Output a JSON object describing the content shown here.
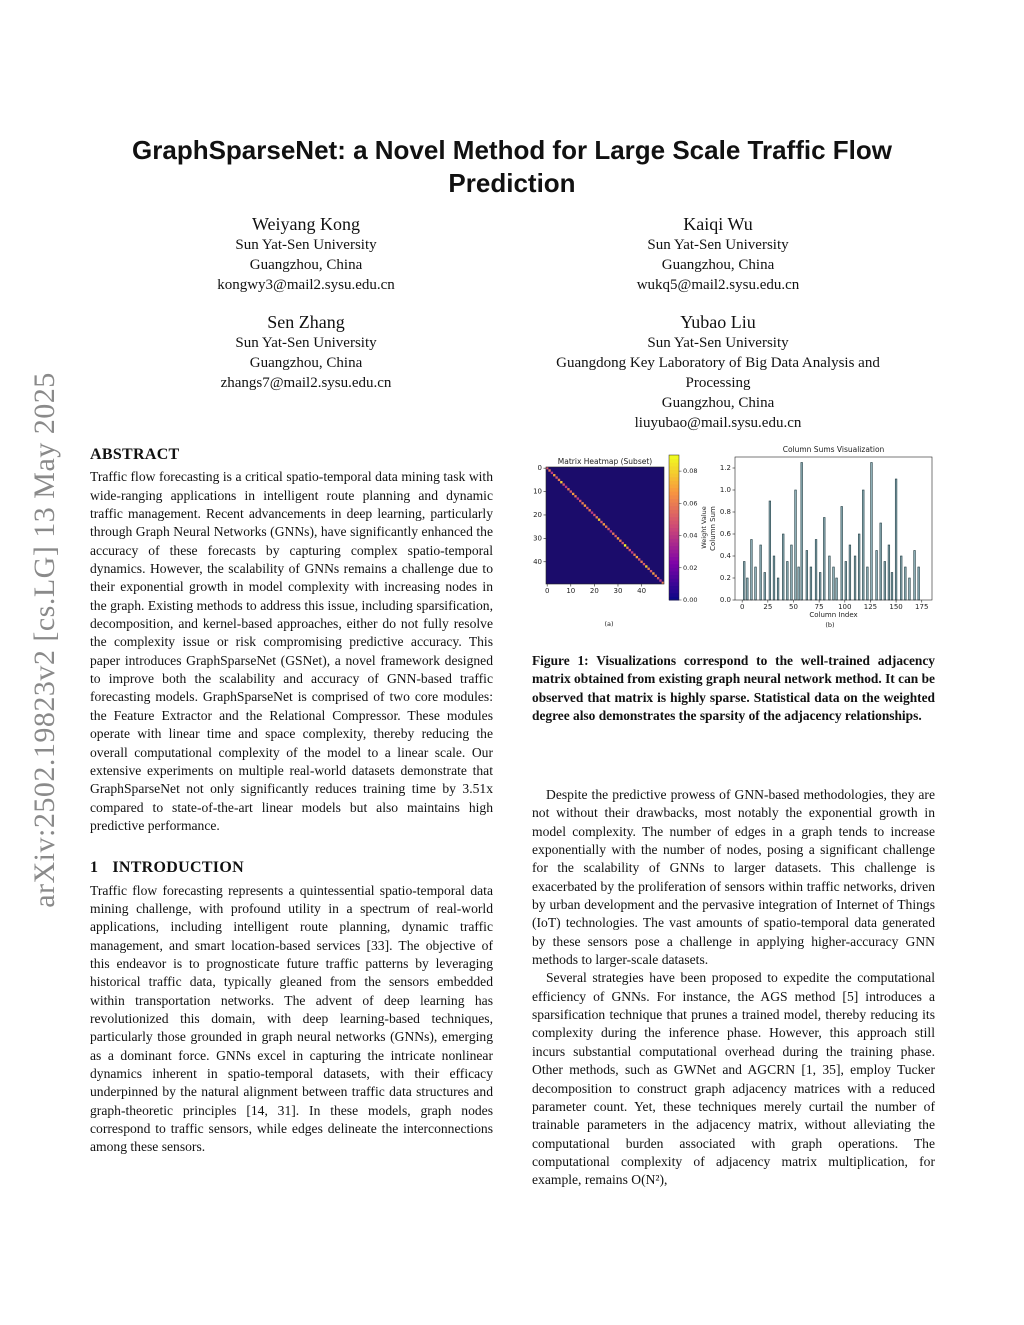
{
  "arxiv_id": "arXiv:2502.19823v2  [cs.LG]  13 May 2025",
  "title": "GraphSparseNet: a Novel Method for Large Scale Traffic Flow Prediction",
  "authors": [
    {
      "name": "Weiyang Kong",
      "lines": [
        "Sun Yat-Sen University",
        "Guangzhou, China",
        "kongwy3@mail2.sysu.edu.cn"
      ]
    },
    {
      "name": "Kaiqi Wu",
      "lines": [
        "Sun Yat-Sen University",
        "Guangzhou, China",
        "wukq5@mail2.sysu.edu.cn"
      ]
    },
    {
      "name": "Sen Zhang",
      "lines": [
        "Sun Yat-Sen University",
        "Guangzhou, China",
        "zhangs7@mail2.sysu.edu.cn"
      ]
    },
    {
      "name": "Yubao Liu",
      "lines": [
        "Sun Yat-Sen University",
        "Guangdong Key Laboratory of Big Data Analysis and Processing",
        "Guangzhou, China",
        "liuyubao@mail.sysu.edu.cn"
      ]
    }
  ],
  "abstract": {
    "heading": "ABSTRACT",
    "text": "Traffic flow forecasting is a critical spatio-temporal data mining task with wide-ranging applications in intelligent route planning and dynamic traffic management. Recent advancements in deep learning, particularly through Graph Neural Networks (GNNs), have significantly enhanced the accuracy of these forecasts by capturing complex spatio-temporal dynamics. However, the scalability of GNNs remains a challenge due to their exponential growth in model complexity with increasing nodes in the graph. Existing methods to address this issue, including sparsification, decomposition, and kernel-based approaches, either do not fully resolve the complexity issue or risk compromising predictive accuracy. This paper introduces GraphSparseNet (GSNet), a novel framework designed to improve both the scalability and accuracy of GNN-based traffic forecasting models. GraphSparseNet is comprised of two core modules: the Feature Extractor and the Relational Compressor. These modules operate with linear time and space complexity, thereby reducing the overall computational complexity of the model to a linear scale. Our extensive experiments on multiple real-world datasets demonstrate that GraphSparseNet not only significantly reduces training time by 3.51x compared to state-of-the-art linear models but also maintains high predictive performance."
  },
  "introduction": {
    "number": "1",
    "heading": "INTRODUCTION",
    "paragraphs": [
      "Traffic flow forecasting represents a quintessential spatio-temporal data mining challenge, with profound utility in a spectrum of real-world applications, including intelligent route planning, dynamic traffic management, and smart location-based services [33]. The objective of this endeavor is to prognosticate future traffic patterns by leveraging historical traffic data, typically gleaned from the sensors embedded within transportation networks. The advent of deep learning has revolutionized this domain, with deep learning-based techniques, particularly those grounded in graph neural networks (GNNs), emerging as a dominant force. GNNs excel in capturing the intricate nonlinear dynamics inherent in spatio-temporal datasets, with their efficacy underpinned by the natural alignment between traffic data structures and graph-theoretic principles [14, 31]. In these models, graph nodes correspond to traffic sensors, while edges delineate the interconnections among these sensors.",
      "Despite the predictive prowess of GNN-based methodologies, they are not without their drawbacks, most notably the exponential growth in model complexity. The number of edges in a graph tends to increase exponentially with the number of nodes, posing a significant challenge for the scalability of GNNs to larger datasets. This challenge is exacerbated by the proliferation of sensors within traffic networks, driven by urban development and the pervasive integration of Internet of Things (IoT) technologies. The vast amounts of spatio-temporal data generated by these sensors pose a challenge in applying higher-accuracy GNN methods to larger-scale datasets.",
      "Several strategies have been proposed to expedite the computational efficiency of GNNs. For instance, the AGS method [5] introduces a sparsification technique that prunes a trained model, thereby reducing its complexity during the inference phase. However, this approach still incurs substantial computational overhead during the training phase. Other methods, such as GWNet and AGCRN [1, 35], employ Tucker decomposition to construct graph adjacency matrices with a reduced parameter count. Yet, these techniques merely curtail the number of trainable parameters in the adjacency matrix, without alleviating the computational burden associated with graph operations. The computational complexity of adjacency matrix multiplication, for example, remains O(N²),"
    ]
  },
  "figure": {
    "heatmap": {
      "type": "heatmap",
      "title": "Matrix Heatmap (Subset)",
      "label": "(a)",
      "xlim": [
        -0.5,
        49.5
      ],
      "ylim": [
        -0.5,
        49.5
      ],
      "xticks": [
        0,
        10,
        20,
        30,
        40
      ],
      "yticks": [
        0,
        10,
        20,
        30,
        40
      ],
      "colorbar_label": "Weight Value",
      "clim": [
        0,
        0.09
      ],
      "colorbar_ticks": [
        {
          "value": 0,
          "label": "0.00"
        },
        {
          "value": 0.02,
          "label": "0.02"
        },
        {
          "value": 0.04,
          "label": "0.04"
        },
        {
          "value": 0.06,
          "label": "0.06"
        },
        {
          "value": 0.08,
          "label": "0.08"
        }
      ],
      "background_color": "#1b0c6b",
      "diagonal": [
        0.05,
        0.06,
        0.04,
        0.07,
        0.05,
        0.06,
        0.08,
        0.05,
        0.04,
        0.06,
        0.05,
        0.07,
        0.06,
        0.04,
        0.05,
        0.06,
        0.07,
        0.05,
        0.06,
        0.04,
        0.05,
        0.06,
        0.08,
        0.05,
        0.07,
        0.06,
        0.05,
        0.04,
        0.06,
        0.05,
        0.07,
        0.06,
        0.05,
        0.09,
        0.06,
        0.05,
        0.04,
        0.06,
        0.07,
        0.05,
        0.06,
        0.05,
        0.08,
        0.06,
        0.05,
        0.07,
        0.06,
        0.05,
        0.04,
        0.06
      ]
    },
    "column_sums": {
      "type": "bar",
      "title": "Column Sums Visualization",
      "label": "(b)",
      "xlabel": "Column Index",
      "ylabel": "Column Sum",
      "xlim": [
        -7,
        185
      ],
      "ylim": [
        0,
        1.3
      ],
      "xticks": [
        0,
        25,
        50,
        75,
        100,
        125,
        150,
        175
      ],
      "yticks": [
        {
          "value": 0,
          "label": "0.0"
        },
        {
          "value": 0.2,
          "label": "0.2"
        },
        {
          "value": 0.4,
          "label": "0.4"
        },
        {
          "value": 0.6,
          "label": "0.6"
        },
        {
          "value": 0.8,
          "label": "0.8"
        },
        {
          "value": 1,
          "label": "1.0"
        },
        {
          "value": 1.2,
          "label": "1.2"
        }
      ],
      "color": "#8fb0b8",
      "edge_color": "#1f3a40",
      "x": [
        2,
        5,
        9,
        13,
        18,
        22,
        27,
        31,
        35,
        40,
        44,
        48,
        52,
        55,
        58,
        63,
        67,
        72,
        76,
        80,
        85,
        89,
        92,
        97,
        101,
        105,
        110,
        114,
        118,
        122,
        126,
        131,
        135,
        139,
        143,
        146,
        150,
        155,
        159,
        163,
        168,
        172
      ],
      "values": [
        0.35,
        0.2,
        0.55,
        0.3,
        0.5,
        0.25,
        0.9,
        0.4,
        0.2,
        0.6,
        0.35,
        0.5,
        1.0,
        0.3,
        1.25,
        0.45,
        0.3,
        0.55,
        0.25,
        0.75,
        0.4,
        0.3,
        0.2,
        0.85,
        0.35,
        0.5,
        0.4,
        0.6,
        1.0,
        0.3,
        1.25,
        0.45,
        0.7,
        0.35,
        0.5,
        0.25,
        1.1,
        0.4,
        0.3,
        0.2,
        0.45,
        0.3
      ]
    },
    "caption": "Figure 1: Visualizations correspond to the well-trained adjacency matrix obtained from existing graph neural network method. It can be observed that matrix is highly sparse. Statistical data on the weighted degree also demonstrates the sparsity of the adjacency relationships."
  }
}
